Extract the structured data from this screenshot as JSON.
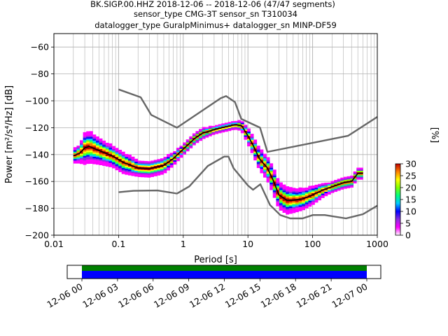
{
  "title": {
    "line1": "BK.SIGP.00.HHZ   2018-12-06 -- 2018-12-06  (47/47 segments)",
    "line2": "sensor_type CMG-3T sensor_sn T310034",
    "line3": "datalogger_type GuralpMinimus+ datalogger_sn MINP-DF59"
  },
  "colors": {
    "model_lines": "#666666",
    "mean_line": "#000000",
    "coverage_top": "#008000",
    "coverage_bottom": "#0000ff",
    "grid": "#b0b0b0"
  },
  "chart_data": [
    {
      "type": "heatmap",
      "xlabel": "Period [s]",
      "ylabel": "Power [m²/s⁴/Hz] [dB]",
      "xscale": "log",
      "xlim": [
        0.01,
        1000
      ],
      "ylim": [
        -200,
        -50
      ],
      "grid": true,
      "x_ticks": [
        "0.01",
        "0.1",
        "1",
        "10",
        "100",
        "1000"
      ],
      "y_ticks": [
        "−60",
        "−80",
        "−100",
        "−120",
        "−140",
        "−160",
        "−180",
        "−200"
      ],
      "colorbar": {
        "label": "[%]",
        "range": [
          0,
          30
        ],
        "ticks": [
          "0",
          "5",
          "10",
          "15",
          "20",
          "25",
          "30"
        ],
        "colormap": [
          "#ffffff",
          "#ff00ff",
          "#8a2be2",
          "#0000ff",
          "#00c8ff",
          "#00ff80",
          "#80ff00",
          "#ffff00",
          "#ff8000",
          "#c00000"
        ]
      },
      "noise_model_high": {
        "period": [
          0.1,
          0.22,
          0.32,
          0.8,
          3.8,
          4.6,
          6.3,
          7.9,
          15.4,
          20,
          354.8,
          1000
        ],
        "power": [
          -91.5,
          -97.4,
          -110.5,
          -120,
          -98,
          -96.5,
          -101,
          -113.5,
          -120,
          -138,
          -126,
          -112
        ]
      },
      "noise_model_low": {
        "period": [
          0.1,
          0.17,
          0.4,
          0.8,
          1.24,
          2.4,
          4.3,
          5.0,
          6.0,
          10.0,
          12.0,
          15.6,
          21.9,
          31.6,
          45.0,
          70.0,
          101.0,
          154.0,
          328.0,
          600.0,
          1000
        ]
      },
      "noise_model_low_power": [
        -168,
        -167,
        -166.7,
        -169,
        -163.7,
        -148.5,
        -141.5,
        -141.5,
        -150.2,
        -163,
        -166.2,
        -162.1,
        -177.5,
        -185,
        -187.5,
        -187.5,
        -185,
        -185,
        -187.5,
        -184.4,
        -178
      ],
      "mean_psd": {
        "period": [
          0.02,
          0.025,
          0.03,
          0.035,
          0.05,
          0.08,
          0.12,
          0.2,
          0.3,
          0.5,
          0.7,
          1.0,
          1.5,
          2.0,
          3.0,
          4.0,
          5.0,
          6.0,
          7.0,
          8.0,
          10.0,
          12.0,
          15.0,
          20.0,
          25.0,
          30.0,
          40.0,
          50.0,
          70.0,
          100.0,
          150.0,
          200.0,
          300.0,
          400.0,
          500.0,
          600.0
        ],
        "power": [
          -141,
          -139,
          -135,
          -134,
          -137,
          -141,
          -146,
          -150,
          -150.5,
          -148,
          -143,
          -136,
          -128,
          -124,
          -121.5,
          -120,
          -119,
          -118,
          -118,
          -118.5,
          -126,
          -133,
          -143,
          -150,
          -160,
          -170,
          -174,
          -174,
          -173,
          -170,
          -166,
          -164,
          -161,
          -160,
          -154,
          -154
        ]
      },
      "spread_db": [
        5,
        7,
        12,
        12,
        10,
        8,
        8,
        6,
        6,
        6,
        5,
        4,
        4,
        4,
        3,
        3,
        3,
        3,
        3,
        4,
        6,
        7,
        8,
        9,
        10,
        10,
        10,
        9,
        8,
        7,
        5,
        4,
        4,
        4,
        4,
        4
      ]
    },
    {
      "type": "bar",
      "xlim": [
        "12-06 00",
        "12-07 00"
      ],
      "x_ticks": [
        "12-06 00",
        "12-06 03",
        "12-06 06",
        "12-06 09",
        "12-06 12",
        "12-06 15",
        "12-06 18",
        "12-06 21",
        "12-07 00"
      ],
      "coverage_start": "12-06 00",
      "coverage_end": "12-07 00"
    }
  ]
}
